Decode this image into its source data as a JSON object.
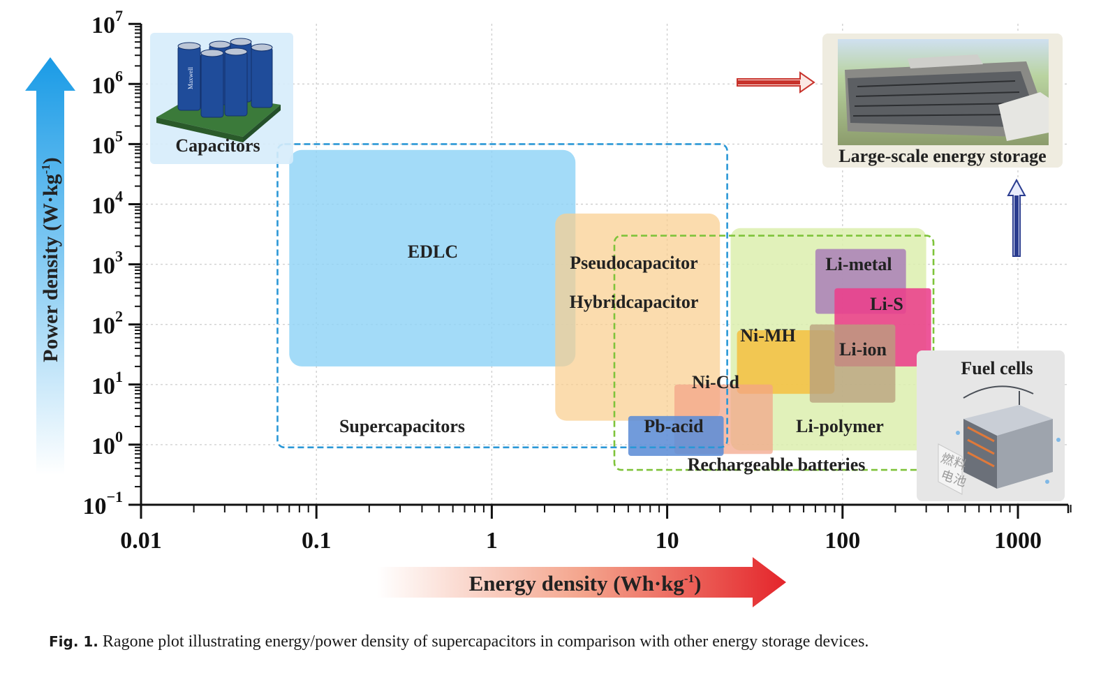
{
  "chart_data": {
    "type": "area",
    "x_scale": "log",
    "y_scale": "log",
    "xlim": [
      0.01,
      2000
    ],
    "ylim": [
      0.1,
      10000000
    ],
    "x_ticks": [
      "0.01",
      "0.1",
      "1",
      "10",
      "100",
      "1000"
    ],
    "y_ticks": [
      {
        "base": "10",
        "exp": "7"
      },
      {
        "base": "10",
        "exp": "6"
      },
      {
        "base": "10",
        "exp": "5"
      },
      {
        "base": "10",
        "exp": "4"
      },
      {
        "base": "10",
        "exp": "3"
      },
      {
        "base": "10",
        "exp": "2"
      },
      {
        "base": "10",
        "exp": "1"
      },
      {
        "base": "10",
        "exp": "0"
      },
      {
        "base": "10",
        "exp": "−1"
      }
    ],
    "xlabel": {
      "main": "Energy density (Wh·kg",
      "sup": "-1",
      "close": ")"
    },
    "ylabel": {
      "main": "Power density (W·kg",
      "sup": "-1",
      "close": ")"
    },
    "grid": true,
    "regions": [
      {
        "name": "EDLC",
        "x": [
          0.07,
          3
        ],
        "y": [
          20,
          80000
        ],
        "color": "#8fd3f6"
      },
      {
        "name": "Pseudocapacitor",
        "x": [
          2.3,
          20
        ],
        "y": [
          2.5,
          7000
        ],
        "color": "#f9cf8f"
      },
      {
        "name": "Hybridcapacitor",
        "x": [
          2.3,
          20
        ],
        "y": [
          2.5,
          7000
        ],
        "color": "#f9cf8f"
      },
      {
        "name": "Li-polymer",
        "x": [
          23,
          300
        ],
        "y": [
          0.8,
          4000
        ],
        "color": "#dcefae"
      },
      {
        "name": "Li-metal",
        "x": [
          70,
          230
        ],
        "y": [
          150,
          1800
        ],
        "color": "#a678b8"
      },
      {
        "name": "Li-S",
        "x": [
          90,
          320
        ],
        "y": [
          20,
          400
        ],
        "color": "#ea3f8b"
      },
      {
        "name": "Ni-MH",
        "x": [
          25,
          90
        ],
        "y": [
          7,
          80
        ],
        "color": "#f5bd3a"
      },
      {
        "name": "Li-ion",
        "x": [
          65,
          200
        ],
        "y": [
          5,
          100
        ],
        "color": "#b8a07e"
      },
      {
        "name": "Ni-Cd",
        "x": [
          11,
          40
        ],
        "y": [
          0.7,
          10
        ],
        "color": "#f3a488"
      },
      {
        "name": "Pb-acid",
        "x": [
          6,
          21
        ],
        "y": [
          0.65,
          3
        ],
        "color": "#5d8dd6"
      }
    ],
    "groups": [
      {
        "name": "Supercapacitors",
        "x": [
          0.06,
          22
        ],
        "y": [
          0.9,
          100000
        ],
        "color": "#2a97d6"
      },
      {
        "name": "Rechargeable batteries",
        "x": [
          5,
          330
        ],
        "y": [
          0.38,
          3000
        ],
        "color": "#7ec33a"
      }
    ],
    "callouts": [
      {
        "name": "Capacitors"
      },
      {
        "name": "Large-scale energy storage"
      },
      {
        "name": "Fuel cells"
      }
    ],
    "fuel_cell_chars": [
      "燃",
      "料",
      "电",
      "池"
    ]
  },
  "caption": {
    "label": "Fig. 1.",
    "text": " Ragone plot illustrating energy/power density of supercapacitors in comparison with other energy storage devices."
  },
  "capacitor_brand": "Maxwell"
}
